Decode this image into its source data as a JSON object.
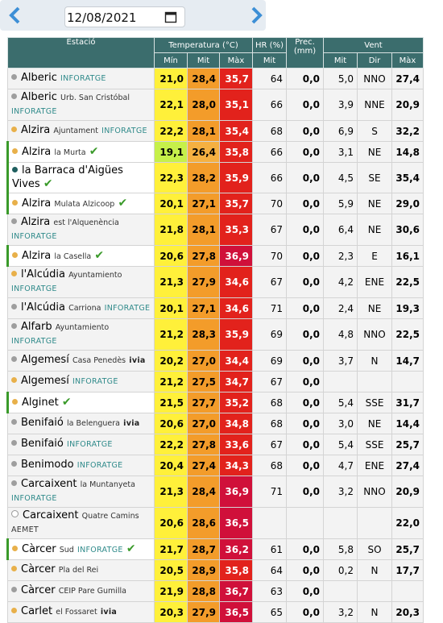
{
  "date": "12/08/2021",
  "table": {
    "headers": [
      "Estació",
      "Temperatura (°C)",
      "HR (%)",
      "Prec. (mm)",
      "Vent"
    ],
    "subheaders": [
      "Mín",
      "Mit",
      "Màx",
      "Mit",
      "Mit",
      "Dir",
      "Màx"
    ],
    "rows": [
      {
        "name": "Alberic",
        "source": "INFORATGE",
        "dot": "#9e9e9e",
        "values": [
          "21,0",
          "28,4",
          "35,7",
          "64",
          "0,0",
          "5,0",
          "NNO",
          "27,4"
        ]
      },
      {
        "name": "Alberic",
        "place": "Urb. San Cristóbal",
        "source": "INFORATGE",
        "dot": "#9e9e9e",
        "values": [
          "22,1",
          "28,0",
          "35,1",
          "66",
          "0,0",
          "3,9",
          "NNE",
          "20,9"
        ]
      },
      {
        "name": "Alzira",
        "place": "Ajuntament",
        "source": "INFORATGE",
        "dot": "#e8b04a",
        "values": [
          "22,2",
          "28,1",
          "35,4",
          "68",
          "0,0",
          "6,9",
          "S",
          "32,2"
        ]
      },
      {
        "name": "Alzira",
        "place": "la Murta",
        "verified": true,
        "dot": "#e8b04a",
        "values": [
          "19,1",
          "26,4",
          "35,8",
          "66",
          "0,0",
          "3,1",
          "NE",
          "14,8"
        ]
      },
      {
        "name": "la Barraca d'Aigües Vives",
        "verified": true,
        "dot": "#1f5f5f",
        "values": [
          "22,3",
          "28,2",
          "35,9",
          "66",
          "0,0",
          "4,5",
          "SE",
          "35,4"
        ]
      },
      {
        "name": "Alzira",
        "place": "Mulata Alzicoop",
        "verified": true,
        "dot": "#e8b04a",
        "values": [
          "20,1",
          "27,1",
          "35,7",
          "70",
          "0,0",
          "5,9",
          "NE",
          "29,0"
        ]
      },
      {
        "name": "Alzira",
        "place": "est l'Alquenència",
        "source": "INFORATGE",
        "dot": "#9e9e9e",
        "values": [
          "21,8",
          "28,1",
          "35,3",
          "67",
          "0,0",
          "6,4",
          "NE",
          "30,6"
        ]
      },
      {
        "name": "Alzira",
        "place": "la Casella",
        "verified": true,
        "dot": "#e8b04a",
        "values": [
          "20,6",
          "27,8",
          "36,9",
          "70",
          "0,0",
          "2,3",
          "E",
          "16,1"
        ]
      },
      {
        "name": "l'Alcúdia",
        "place": "Ayuntamiento",
        "source": "INFORATGE",
        "dot": "#e8b04a",
        "values": [
          "21,3",
          "27,9",
          "34,6",
          "67",
          "0,0",
          "4,2",
          "ENE",
          "22,5"
        ]
      },
      {
        "name": "l'Alcúdia",
        "place": "Carriona",
        "source": "INFORATGE",
        "dot": "#9e9e9e",
        "values": [
          "20,1",
          "27,1",
          "34,6",
          "71",
          "0,0",
          "2,4",
          "NE",
          "19,3"
        ]
      },
      {
        "name": "Alfarb",
        "place": "Ayuntamiento",
        "source": "INFORATGE",
        "dot": "#9e9e9e",
        "values": [
          "21,2",
          "28,3",
          "35,9",
          "69",
          "0,0",
          "4,8",
          "NNO",
          "22,5"
        ]
      },
      {
        "name": "Algemesí",
        "place": "Casa Penedès",
        "source": "ivia",
        "dot": "#9e9e9e",
        "values": [
          "20,2",
          "27,0",
          "34,4",
          "69",
          "0,0",
          "3,7",
          "N",
          "14,7"
        ]
      },
      {
        "name": "Algemesí",
        "source": "INFORATGE",
        "dot": "#e8b04a",
        "values": [
          "21,2",
          "27,5",
          "34,7",
          "67",
          "0,0",
          null,
          null,
          null
        ]
      },
      {
        "name": "Alginet",
        "verified": true,
        "dot": "#e8b04a",
        "values": [
          "21,5",
          "27,7",
          "35,2",
          "68",
          "0,0",
          "5,4",
          "SSE",
          "31,7"
        ]
      },
      {
        "name": "Benifaió",
        "place": "la Belenguera",
        "source": "ivia",
        "dot": "#9e9e9e",
        "values": [
          "20,6",
          "27,0",
          "34,8",
          "68",
          "0,0",
          "3,0",
          "NE",
          "14,4"
        ]
      },
      {
        "name": "Benifaió",
        "source": "INFORATGE",
        "dot": "#9e9e9e",
        "values": [
          "22,2",
          "27,8",
          "33,6",
          "67",
          "0,0",
          "5,4",
          "SSE",
          "25,7"
        ]
      },
      {
        "name": "Benimodo",
        "source": "INFORATGE",
        "dot": "#9e9e9e",
        "values": [
          "20,4",
          "27,4",
          "34,3",
          "68",
          "0,0",
          "4,7",
          "ENE",
          "27,4"
        ]
      },
      {
        "name": "Carcaixent",
        "place": "la Muntanyeta",
        "source": "INFORATGE",
        "dot": "#9e9e9e",
        "values": [
          "21,3",
          "28,4",
          "36,9",
          "71",
          "0,0",
          "3,2",
          "NNO",
          "20,9"
        ]
      },
      {
        "name": "Carcaixent",
        "place": "Quatre Camins",
        "source": "AEMET",
        "dot": "#ffffff",
        "values": [
          "20,6",
          "28,6",
          "36,5",
          null,
          null,
          null,
          null,
          "22,0"
        ]
      },
      {
        "name": "Càrcer",
        "place": "Sud",
        "source": "INFORATGE",
        "verified": true,
        "dot": "#e8b04a",
        "values": [
          "21,7",
          "28,7",
          "36,2",
          "61",
          "0,0",
          "5,8",
          "SO",
          "25,7"
        ]
      },
      {
        "name": "Càrcer",
        "place": "Pla del Rei",
        "dot": "#e8b04a",
        "values": [
          "20,5",
          "28,9",
          "35,8",
          "64",
          "0,0",
          "0,2",
          "N",
          "17,7"
        ]
      },
      {
        "name": "Càrcer",
        "place": "CEIP Pare Gumilla",
        "dot": "#9e9e9e",
        "values": [
          "21,9",
          "28,8",
          "36,7",
          "63",
          "0,0",
          null,
          null,
          null
        ]
      },
      {
        "name": "Carlet",
        "place": "el Fossaret",
        "source": "ivia",
        "dot": "#e8b04a",
        "values": [
          "20,3",
          "27,9",
          "36,5",
          "65",
          "0,0",
          "3,2",
          "N",
          "20,3"
        ]
      }
    ]
  }
}
